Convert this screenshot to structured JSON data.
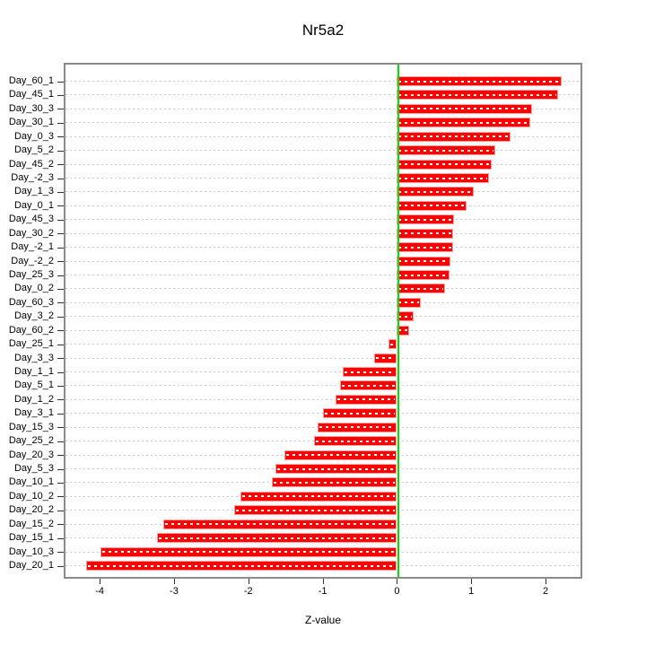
{
  "title": "Nr5a2",
  "xlabel": "Z-value",
  "chart_data": {
    "type": "bar",
    "orientation": "horizontal",
    "title": "Nr5a2",
    "xlabel": "Z-value",
    "ylabel": "",
    "categories": [
      "Day_60_1",
      "Day_45_1",
      "Day_30_3",
      "Day_30_1",
      "Day_0_3",
      "Day_5_2",
      "Day_45_2",
      "Day_-2_3",
      "Day_1_3",
      "Day_0_1",
      "Day_45_3",
      "Day_30_2",
      "Day_-2_1",
      "Day_-2_2",
      "Day_25_3",
      "Day_0_2",
      "Day_60_3",
      "Day_3_2",
      "Day_60_2",
      "Day_25_1",
      "Day_3_3",
      "Day_1_1",
      "Day_5_1",
      "Day_1_2",
      "Day_3_1",
      "Day_15_3",
      "Day_25_2",
      "Day_20_3",
      "Day_5_3",
      "Day_10_1",
      "Day_10_2",
      "Day_20_2",
      "Day_15_2",
      "Day_15_1",
      "Day_10_3",
      "Day_20_1"
    ],
    "values": [
      2.22,
      2.17,
      1.82,
      1.8,
      1.53,
      1.32,
      1.27,
      1.24,
      1.03,
      0.94,
      0.77,
      0.76,
      0.75,
      0.72,
      0.71,
      0.65,
      0.32,
      0.22,
      0.17,
      -0.11,
      -0.31,
      -0.73,
      -0.76,
      -0.83,
      -1.0,
      -1.07,
      -1.12,
      -1.51,
      -1.63,
      -1.68,
      -2.11,
      -2.19,
      -3.14,
      -3.23,
      -3.99,
      -4.18
    ],
    "xlim": [
      -4.46,
      2.47
    ],
    "x_ticks": [
      "-4",
      "-3",
      "-2",
      "-1",
      "0",
      "1",
      "2"
    ],
    "x_tick_values": [
      -4,
      -3,
      -2,
      -1,
      0,
      1,
      2
    ],
    "grid": "dotted-horizontal",
    "zero_line": true,
    "legend": "none",
    "colors": {
      "bar_fill": "#ff0000",
      "bar_border": "#ff9e9e",
      "bar_inner_dash": "#ffffff",
      "zero_line": "#00dd00",
      "grid_line": "#c9c9c9",
      "box_border": "#8a8a8a",
      "text": "#000000"
    }
  }
}
